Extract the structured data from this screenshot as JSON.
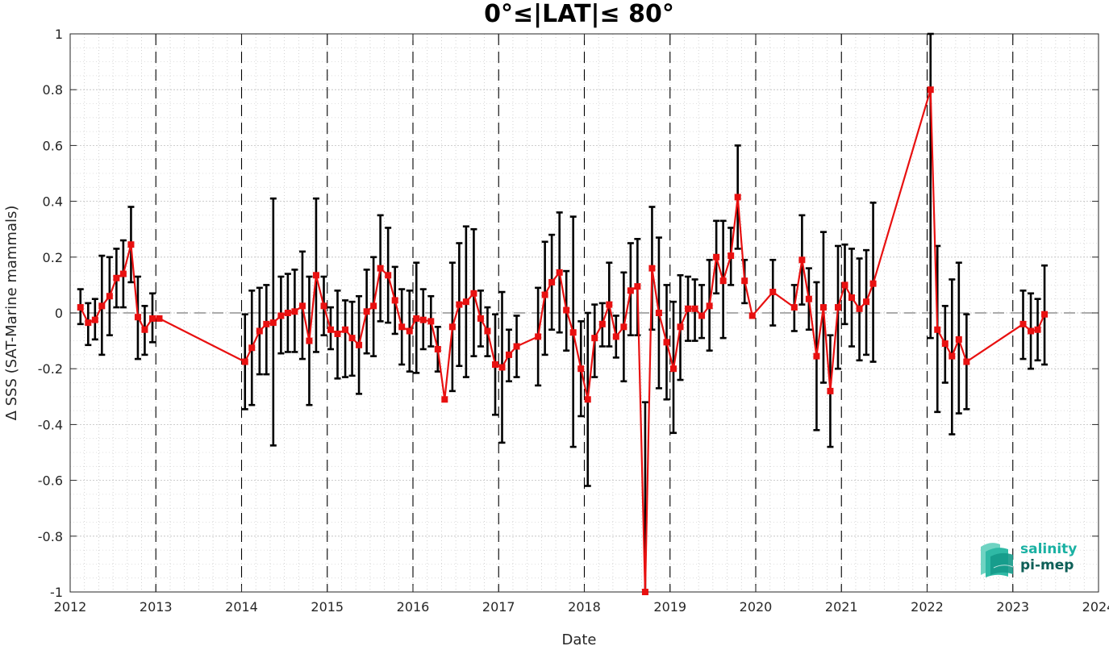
{
  "chart_data": {
    "type": "line",
    "title": "0°≤|LAT|≤ 80°",
    "xlabel": "Date",
    "ylabel": "Δ SSS (SAT-Marine mammals)",
    "xlim": [
      2012,
      2024
    ],
    "ylim": [
      -1,
      1
    ],
    "x_ticks": [
      "2012",
      "2013",
      "2014",
      "2015",
      "2016",
      "2017",
      "2018",
      "2019",
      "2020",
      "2021",
      "2022",
      "2023",
      "2024"
    ],
    "y_ticks": [
      "1",
      "0.8",
      "0.6",
      "0.4",
      "0.2",
      "0",
      "-0.2",
      "-0.4",
      "-0.6",
      "-0.8",
      "-1"
    ],
    "grid": true,
    "year_dividers": [
      2013,
      2014,
      2015,
      2016,
      2017,
      2018,
      2019,
      2020,
      2021,
      2022,
      2023
    ],
    "zero_line": 0,
    "series": [
      {
        "color": "#e81010",
        "errorbar_color": "#000000",
        "points": [
          {
            "x": 2012.12,
            "y": 0.02,
            "lo": -0.04,
            "hi": 0.085
          },
          {
            "x": 2012.21,
            "y": -0.035,
            "lo": -0.115,
            "hi": 0.035
          },
          {
            "x": 2012.29,
            "y": -0.025,
            "lo": -0.095,
            "hi": 0.05
          },
          {
            "x": 2012.37,
            "y": 0.025,
            "lo": -0.15,
            "hi": 0.205
          },
          {
            "x": 2012.46,
            "y": 0.06,
            "lo": -0.08,
            "hi": 0.2
          },
          {
            "x": 2012.54,
            "y": 0.125,
            "lo": 0.02,
            "hi": 0.23
          },
          {
            "x": 2012.62,
            "y": 0.14,
            "lo": 0.02,
            "hi": 0.26
          },
          {
            "x": 2012.71,
            "y": 0.245,
            "lo": 0.11,
            "hi": 0.38
          },
          {
            "x": 2012.79,
            "y": -0.015,
            "lo": -0.165,
            "hi": 0.13
          },
          {
            "x": 2012.87,
            "y": -0.06,
            "lo": -0.15,
            "hi": 0.025
          },
          {
            "x": 2012.96,
            "y": -0.02,
            "lo": -0.105,
            "hi": 0.07
          },
          {
            "x": 2013.04,
            "y": -0.02,
            "lo": -0.02,
            "hi": -0.02
          },
          {
            "x": 2014.04,
            "y": -0.175,
            "lo": -0.345,
            "hi": -0.005
          },
          {
            "x": 2014.12,
            "y": -0.125,
            "lo": -0.33,
            "hi": 0.08
          },
          {
            "x": 2014.21,
            "y": -0.065,
            "lo": -0.22,
            "hi": 0.09
          },
          {
            "x": 2014.29,
            "y": -0.04,
            "lo": -0.22,
            "hi": 0.1
          },
          {
            "x": 2014.37,
            "y": -0.035,
            "lo": -0.475,
            "hi": 0.41
          },
          {
            "x": 2014.46,
            "y": -0.01,
            "lo": -0.145,
            "hi": 0.13
          },
          {
            "x": 2014.54,
            "y": 0.0,
            "lo": -0.14,
            "hi": 0.14
          },
          {
            "x": 2014.62,
            "y": 0.005,
            "lo": -0.14,
            "hi": 0.155
          },
          {
            "x": 2014.71,
            "y": 0.025,
            "lo": -0.165,
            "hi": 0.22
          },
          {
            "x": 2014.79,
            "y": -0.1,
            "lo": -0.33,
            "hi": 0.13
          },
          {
            "x": 2014.87,
            "y": 0.135,
            "lo": -0.14,
            "hi": 0.41
          },
          {
            "x": 2014.96,
            "y": 0.025,
            "lo": -0.08,
            "hi": 0.13
          },
          {
            "x": 2015.04,
            "y": -0.06,
            "lo": -0.13,
            "hi": 0.02
          },
          {
            "x": 2015.12,
            "y": -0.075,
            "lo": -0.235,
            "hi": 0.08
          },
          {
            "x": 2015.21,
            "y": -0.06,
            "lo": -0.23,
            "hi": 0.045
          },
          {
            "x": 2015.29,
            "y": -0.09,
            "lo": -0.225,
            "hi": 0.04
          },
          {
            "x": 2015.37,
            "y": -0.115,
            "lo": -0.29,
            "hi": 0.06
          },
          {
            "x": 2015.46,
            "y": 0.005,
            "lo": -0.145,
            "hi": 0.155
          },
          {
            "x": 2015.54,
            "y": 0.025,
            "lo": -0.155,
            "hi": 0.2
          },
          {
            "x": 2015.62,
            "y": 0.16,
            "lo": -0.03,
            "hi": 0.35
          },
          {
            "x": 2015.71,
            "y": 0.135,
            "lo": -0.035,
            "hi": 0.305
          },
          {
            "x": 2015.79,
            "y": 0.045,
            "lo": -0.075,
            "hi": 0.165
          },
          {
            "x": 2015.87,
            "y": -0.05,
            "lo": -0.185,
            "hi": 0.085
          },
          {
            "x": 2015.96,
            "y": -0.065,
            "lo": -0.21,
            "hi": 0.08
          },
          {
            "x": 2016.04,
            "y": -0.02,
            "lo": -0.215,
            "hi": 0.18
          },
          {
            "x": 2016.12,
            "y": -0.025,
            "lo": -0.13,
            "hi": 0.085
          },
          {
            "x": 2016.21,
            "y": -0.03,
            "lo": -0.12,
            "hi": 0.06
          },
          {
            "x": 2016.29,
            "y": -0.13,
            "lo": -0.21,
            "hi": -0.05
          },
          {
            "x": 2016.37,
            "y": -0.31,
            "lo": -0.31,
            "hi": -0.31
          },
          {
            "x": 2016.46,
            "y": -0.05,
            "lo": -0.28,
            "hi": 0.18
          },
          {
            "x": 2016.54,
            "y": 0.03,
            "lo": -0.19,
            "hi": 0.25
          },
          {
            "x": 2016.62,
            "y": 0.04,
            "lo": -0.23,
            "hi": 0.31
          },
          {
            "x": 2016.71,
            "y": 0.07,
            "lo": -0.155,
            "hi": 0.3
          },
          {
            "x": 2016.79,
            "y": -0.02,
            "lo": -0.12,
            "hi": 0.08
          },
          {
            "x": 2016.87,
            "y": -0.065,
            "lo": -0.155,
            "hi": 0.02
          },
          {
            "x": 2016.96,
            "y": -0.185,
            "lo": -0.365,
            "hi": -0.005
          },
          {
            "x": 2017.04,
            "y": -0.195,
            "lo": -0.465,
            "hi": 0.075
          },
          {
            "x": 2017.12,
            "y": -0.15,
            "lo": -0.245,
            "hi": -0.06
          },
          {
            "x": 2017.21,
            "y": -0.12,
            "lo": -0.23,
            "hi": -0.01
          },
          {
            "x": 2017.46,
            "y": -0.085,
            "lo": -0.26,
            "hi": 0.09
          },
          {
            "x": 2017.54,
            "y": 0.065,
            "lo": -0.15,
            "hi": 0.255
          },
          {
            "x": 2017.62,
            "y": 0.11,
            "lo": -0.06,
            "hi": 0.28
          },
          {
            "x": 2017.71,
            "y": 0.145,
            "lo": -0.07,
            "hi": 0.36
          },
          {
            "x": 2017.79,
            "y": 0.01,
            "lo": -0.135,
            "hi": 0.15
          },
          {
            "x": 2017.87,
            "y": -0.07,
            "lo": -0.48,
            "hi": 0.345
          },
          {
            "x": 2017.96,
            "y": -0.2,
            "lo": -0.37,
            "hi": -0.03
          },
          {
            "x": 2018.04,
            "y": -0.31,
            "lo": -0.62,
            "hi": 0.0
          },
          {
            "x": 2018.12,
            "y": -0.09,
            "lo": -0.23,
            "hi": 0.03
          },
          {
            "x": 2018.21,
            "y": -0.04,
            "lo": -0.12,
            "hi": 0.035
          },
          {
            "x": 2018.29,
            "y": 0.03,
            "lo": -0.12,
            "hi": 0.18
          },
          {
            "x": 2018.37,
            "y": -0.085,
            "lo": -0.16,
            "hi": -0.01
          },
          {
            "x": 2018.46,
            "y": -0.05,
            "lo": -0.245,
            "hi": 0.145
          },
          {
            "x": 2018.54,
            "y": 0.08,
            "lo": -0.08,
            "hi": 0.25
          },
          {
            "x": 2018.62,
            "y": 0.095,
            "lo": -0.08,
            "hi": 0.265
          },
          {
            "x": 2018.71,
            "y": -1.0,
            "lo": -1.0,
            "hi": -0.32
          },
          {
            "x": 2018.79,
            "y": 0.16,
            "lo": -0.06,
            "hi": 0.38
          },
          {
            "x": 2018.87,
            "y": 0.0,
            "lo": -0.27,
            "hi": 0.27
          },
          {
            "x": 2018.96,
            "y": -0.105,
            "lo": -0.31,
            "hi": 0.1
          },
          {
            "x": 2019.04,
            "y": -0.2,
            "lo": -0.43,
            "hi": 0.04
          },
          {
            "x": 2019.12,
            "y": -0.05,
            "lo": -0.24,
            "hi": 0.135
          },
          {
            "x": 2019.21,
            "y": 0.015,
            "lo": -0.1,
            "hi": 0.13
          },
          {
            "x": 2019.29,
            "y": 0.015,
            "lo": -0.1,
            "hi": 0.12
          },
          {
            "x": 2019.37,
            "y": -0.01,
            "lo": -0.09,
            "hi": 0.1
          },
          {
            "x": 2019.46,
            "y": 0.025,
            "lo": -0.135,
            "hi": 0.19
          },
          {
            "x": 2019.54,
            "y": 0.2,
            "lo": 0.07,
            "hi": 0.33
          },
          {
            "x": 2019.62,
            "y": 0.115,
            "lo": -0.09,
            "hi": 0.33
          },
          {
            "x": 2019.71,
            "y": 0.205,
            "lo": 0.1,
            "hi": 0.305
          },
          {
            "x": 2019.79,
            "y": 0.415,
            "lo": 0.23,
            "hi": 0.6
          },
          {
            "x": 2019.87,
            "y": 0.115,
            "lo": 0.035,
            "hi": 0.19
          },
          {
            "x": 2019.96,
            "y": -0.01,
            "lo": -0.01,
            "hi": -0.01
          },
          {
            "x": 2020.2,
            "y": 0.075,
            "lo": -0.045,
            "hi": 0.19
          },
          {
            "x": 2020.45,
            "y": 0.02,
            "lo": -0.065,
            "hi": 0.1
          },
          {
            "x": 2020.54,
            "y": 0.19,
            "lo": 0.03,
            "hi": 0.35
          },
          {
            "x": 2020.62,
            "y": 0.05,
            "lo": -0.06,
            "hi": 0.16
          },
          {
            "x": 2020.71,
            "y": -0.155,
            "lo": -0.42,
            "hi": 0.11
          },
          {
            "x": 2020.79,
            "y": 0.02,
            "lo": -0.25,
            "hi": 0.29
          },
          {
            "x": 2020.87,
            "y": -0.28,
            "lo": -0.48,
            "hi": -0.08
          },
          {
            "x": 2020.96,
            "y": 0.02,
            "lo": -0.2,
            "hi": 0.24
          },
          {
            "x": 2021.04,
            "y": 0.1,
            "lo": -0.04,
            "hi": 0.245
          },
          {
            "x": 2021.12,
            "y": 0.055,
            "lo": -0.12,
            "hi": 0.23
          },
          {
            "x": 2021.21,
            "y": 0.015,
            "lo": -0.17,
            "hi": 0.195
          },
          {
            "x": 2021.29,
            "y": 0.04,
            "lo": -0.15,
            "hi": 0.225
          },
          {
            "x": 2021.37,
            "y": 0.105,
            "lo": -0.175,
            "hi": 0.395
          },
          {
            "x": 2022.04,
            "y": 0.8,
            "lo": -0.09,
            "hi": 1.0
          },
          {
            "x": 2022.12,
            "y": -0.06,
            "lo": -0.355,
            "hi": 0.24
          },
          {
            "x": 2022.21,
            "y": -0.11,
            "lo": -0.25,
            "hi": 0.025
          },
          {
            "x": 2022.29,
            "y": -0.155,
            "lo": -0.435,
            "hi": 0.12
          },
          {
            "x": 2022.37,
            "y": -0.095,
            "lo": -0.36,
            "hi": 0.18
          },
          {
            "x": 2022.46,
            "y": -0.175,
            "lo": -0.345,
            "hi": -0.005
          },
          {
            "x": 2023.12,
            "y": -0.04,
            "lo": -0.165,
            "hi": 0.08
          },
          {
            "x": 2023.21,
            "y": -0.065,
            "lo": -0.2,
            "hi": 0.07
          },
          {
            "x": 2023.29,
            "y": -0.06,
            "lo": -0.17,
            "hi": 0.05
          },
          {
            "x": 2023.37,
            "y": -0.005,
            "lo": -0.185,
            "hi": 0.17
          }
        ]
      }
    ]
  },
  "logo": {
    "line1": "salinity",
    "line2": "pi-mep",
    "color1": "#1ab1a3",
    "color2": "#0d5f57"
  }
}
